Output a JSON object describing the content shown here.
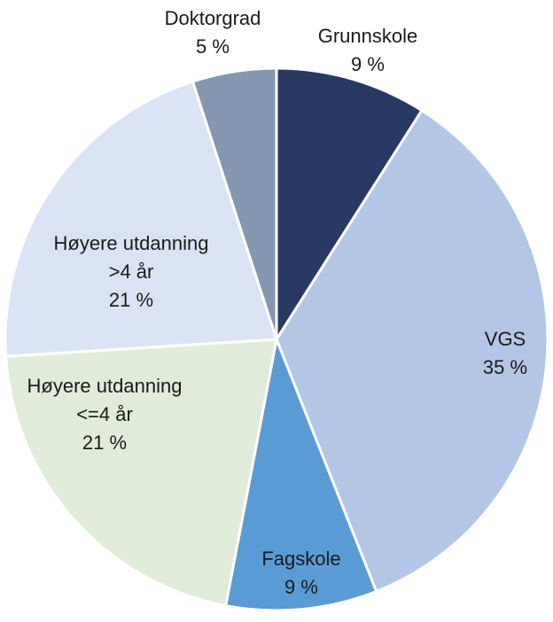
{
  "chart_data": {
    "type": "pie",
    "title": "",
    "start_angle_deg": 0,
    "direction": "clockwise",
    "slices": [
      {
        "label_lines": [
          "Grunnskole"
        ],
        "pct_text": "9 %",
        "value": 9,
        "color": "#283a63"
      },
      {
        "label_lines": [
          "VGS"
        ],
        "pct_text": "35 %",
        "value": 35,
        "color": "#b4c6e6"
      },
      {
        "label_lines": [
          "Fagskole"
        ],
        "pct_text": "9 %",
        "value": 9,
        "color": "#5b9bd5"
      },
      {
        "label_lines": [
          "Høyere utdanning",
          "<=4 år"
        ],
        "pct_text": "21 %",
        "value": 21,
        "color": "#e1ebd9"
      },
      {
        "label_lines": [
          "Høyere utdanning",
          ">4 år"
        ],
        "pct_text": "21 %",
        "value": 21,
        "color": "#dae3f3"
      },
      {
        "label_lines": [
          "Doktorgrad"
        ],
        "pct_text": "5 %",
        "value": 5,
        "color": "#8496b0"
      }
    ]
  }
}
